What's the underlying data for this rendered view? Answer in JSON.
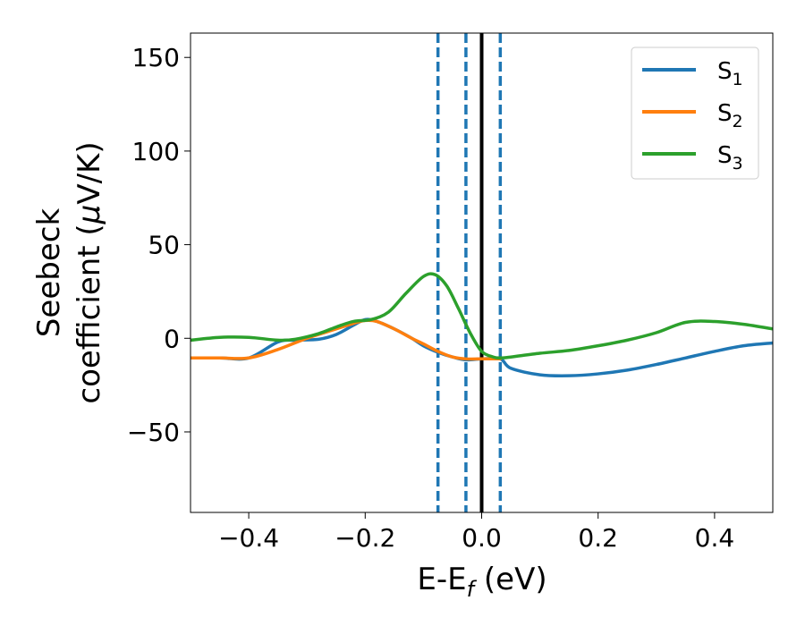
{
  "chart_data": {
    "type": "line",
    "xlabel": {
      "main": "E-E",
      "sub": "f",
      "unit": " (eV)"
    },
    "ylabel": {
      "line1": "Seebeck",
      "line2_prefix": "coefficient  (",
      "mu": "μ",
      "line2_suffix": "V/K)"
    },
    "xlim": [
      -0.5,
      0.5
    ],
    "ylim": [
      -93,
      163
    ],
    "xticks": [
      -0.4,
      -0.2,
      0.0,
      0.2,
      0.4
    ],
    "xtick_labels": [
      "−0.4",
      "−0.2",
      "0.0",
      "0.2",
      "0.4"
    ],
    "yticks": [
      150,
      100,
      50,
      0,
      -50
    ],
    "ytick_labels": [
      "150",
      "100",
      "50",
      "0",
      "−50"
    ],
    "grid": false,
    "legend_position": "top-right",
    "vlines": [
      {
        "x": -0.075,
        "style": "dashed",
        "color": "#1f77b4"
      },
      {
        "x": -0.027,
        "style": "dashed",
        "color": "#1f77b4"
      },
      {
        "x": 0.0,
        "style": "solid",
        "color": "#000000"
      },
      {
        "x": 0.032,
        "style": "dashed",
        "color": "#1f77b4"
      }
    ],
    "series": [
      {
        "name": "S",
        "sub": "1",
        "color": "#1f77b4",
        "x": [
          -0.5,
          -0.45,
          -0.4,
          -0.35,
          -0.32,
          -0.28,
          -0.25,
          -0.22,
          -0.2,
          -0.18,
          -0.15,
          -0.12,
          -0.1,
          -0.075,
          -0.05,
          -0.027,
          0.0,
          0.032,
          0.05,
          0.1,
          0.15,
          0.2,
          0.25,
          0.3,
          0.35,
          0.4,
          0.45,
          0.5
        ],
        "y": [
          -10.5,
          -10.5,
          -10.5,
          -2,
          -1,
          -0.5,
          2,
          7,
          10,
          9,
          5,
          0,
          -4,
          -7.5,
          -10,
          -11.5,
          -11,
          -11,
          -16,
          -19.5,
          -20,
          -19,
          -17,
          -14,
          -10.5,
          -7,
          -4,
          -2.5
        ]
      },
      {
        "name": "S",
        "sub": "2",
        "color": "#ff7f0e",
        "x": [
          -0.5,
          -0.45,
          -0.4,
          -0.35,
          -0.3,
          -0.25,
          -0.22,
          -0.2,
          -0.18,
          -0.15,
          -0.12,
          -0.1,
          -0.075,
          -0.05,
          -0.027,
          0.0,
          0.032
        ],
        "y": [
          -10.5,
          -10.5,
          -10.5,
          -6,
          0,
          5,
          8,
          9.5,
          9,
          5,
          0,
          -3,
          -7,
          -10,
          -11,
          -11,
          -11
        ]
      },
      {
        "name": "S",
        "sub": "3",
        "color": "#2ca02c",
        "x": [
          -0.5,
          -0.45,
          -0.4,
          -0.35,
          -0.32,
          -0.28,
          -0.25,
          -0.22,
          -0.19,
          -0.16,
          -0.13,
          -0.1,
          -0.08,
          -0.06,
          -0.04,
          -0.02,
          0.0,
          0.02,
          0.032,
          0.05,
          0.1,
          0.15,
          0.2,
          0.25,
          0.3,
          0.35,
          0.4,
          0.45,
          0.5
        ],
        "y": [
          -1,
          0.5,
          0.5,
          -1,
          -0.5,
          2.5,
          6,
          9,
          10,
          14,
          24,
          33,
          34,
          28,
          16,
          3,
          -7,
          -10,
          -10.5,
          -10,
          -8,
          -6.5,
          -4,
          -1,
          3,
          8.5,
          9,
          7.5,
          5
        ]
      }
    ]
  }
}
